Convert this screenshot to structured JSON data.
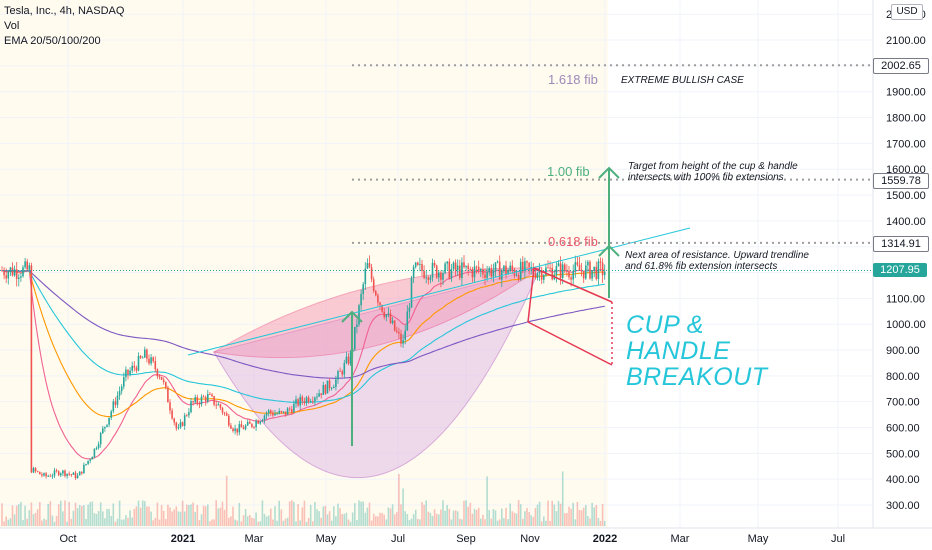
{
  "header": {
    "symbol_line": "Tesla, Inc., 4h, NASDAQ",
    "vol_label": "Vol",
    "ema_label": "EMA 20/50/100/200",
    "currency_button": "USD"
  },
  "price_axis": {
    "ticks": [
      "2200.00",
      "2100.00",
      "2000.00",
      "1900.00",
      "1800.00",
      "1700.00",
      "1600.00",
      "1500.00",
      "1400.00",
      "1300.00",
      "1200.00",
      "1100.00",
      "1000.00",
      "900.00",
      "800.00",
      "700.00",
      "600.00",
      "500.00",
      "400.00",
      "300.00"
    ],
    "tick_values": [
      2200,
      2100,
      2000,
      1900,
      1800,
      1700,
      1600,
      1500,
      1400,
      1300,
      1200,
      1100,
      1000,
      900,
      800,
      700,
      600,
      500,
      400,
      300
    ]
  },
  "time_axis": {
    "labels": [
      "Oct",
      "2021",
      "Mar",
      "May",
      "Jul",
      "Sep",
      "Nov",
      "2022",
      "Mar",
      "May",
      "Jul"
    ],
    "bold": [
      false,
      true,
      false,
      false,
      false,
      false,
      false,
      true,
      false,
      false,
      false
    ]
  },
  "price_tags": [
    {
      "text": "2002.65",
      "value": 2002.65,
      "style": "gray"
    },
    {
      "text": "1559.78",
      "value": 1559.78,
      "style": "gray"
    },
    {
      "text": "1314.91",
      "value": 1314.91,
      "style": "gray"
    },
    {
      "text": "1207.95",
      "value": 1207.95,
      "style": "green"
    }
  ],
  "annotations": {
    "fib_1618": {
      "label": "1.618 fib",
      "note": "EXTREME BULLISH CASE",
      "color": "#9c8ab8"
    },
    "fib_100": {
      "label": "1.00 fib",
      "note_line1": "Target from height of the cup & handle",
      "note_line2": "intersects with 100% fib extensions",
      "color": "#4caf7d"
    },
    "fib_0618": {
      "label": "0.618 fib",
      "note_line1": "Next area of resistance. Upward trendline",
      "note_line2": "and 61.8% fib extension intersects",
      "color": "#e8576b"
    },
    "title_lines": [
      "CUP &",
      "HANDLE",
      "BREAKOUT"
    ],
    "title_color": "#26c6da"
  },
  "chart_data": {
    "type": "candlestick",
    "symbol": "Tesla, Inc.",
    "interval": "4h",
    "exchange": "NASDAQ",
    "currency": "USD",
    "indicators": [
      "Vol",
      "EMA 20/50/100/200"
    ],
    "ylim": [
      250,
      2250
    ],
    "x_range": [
      "2020-09",
      "2022-07"
    ],
    "last_price": 1207.95,
    "levels": [
      {
        "label": "1.618 fib",
        "value": 2002.65
      },
      {
        "label": "1.00 fib",
        "value": 1559.78
      },
      {
        "label": "0.618 fib",
        "value": 1314.91
      }
    ],
    "price_path": {
      "dates": [
        "2020-09-01",
        "2020-09-20",
        "2020-10-10",
        "2020-11-01",
        "2020-11-20",
        "2020-12-10",
        "2021-01-01",
        "2021-01-26",
        "2021-02-15",
        "2021-03-08",
        "2021-03-25",
        "2021-04-15",
        "2021-05-01",
        "2021-05-20",
        "2021-06-10",
        "2021-07-01",
        "2021-07-20",
        "2021-08-10",
        "2021-09-01",
        "2021-09-25",
        "2021-10-15",
        "2021-11-04",
        "2021-11-20",
        "2021-12-05",
        "2021-12-20",
        "2022-01-03"
      ],
      "close": [
        440,
        410,
        430,
        410,
        500,
        640,
        800,
        880,
        800,
        580,
        690,
        720,
        680,
        590,
        610,
        660,
        650,
        700,
        730,
        780,
        880,
        1230,
        1090,
        1000,
        920,
        1207.95
      ]
    }
  },
  "colors": {
    "up": "#26a69a",
    "down": "#ef5350",
    "ema20": "#f06292",
    "ema50": "#ff9800",
    "ema100": "#26c6da",
    "ema200": "#7e57c2",
    "cup_fill": "#e1bee7",
    "cup_rim": "#f8bbd0",
    "grid_shade": "#fff8e1"
  }
}
